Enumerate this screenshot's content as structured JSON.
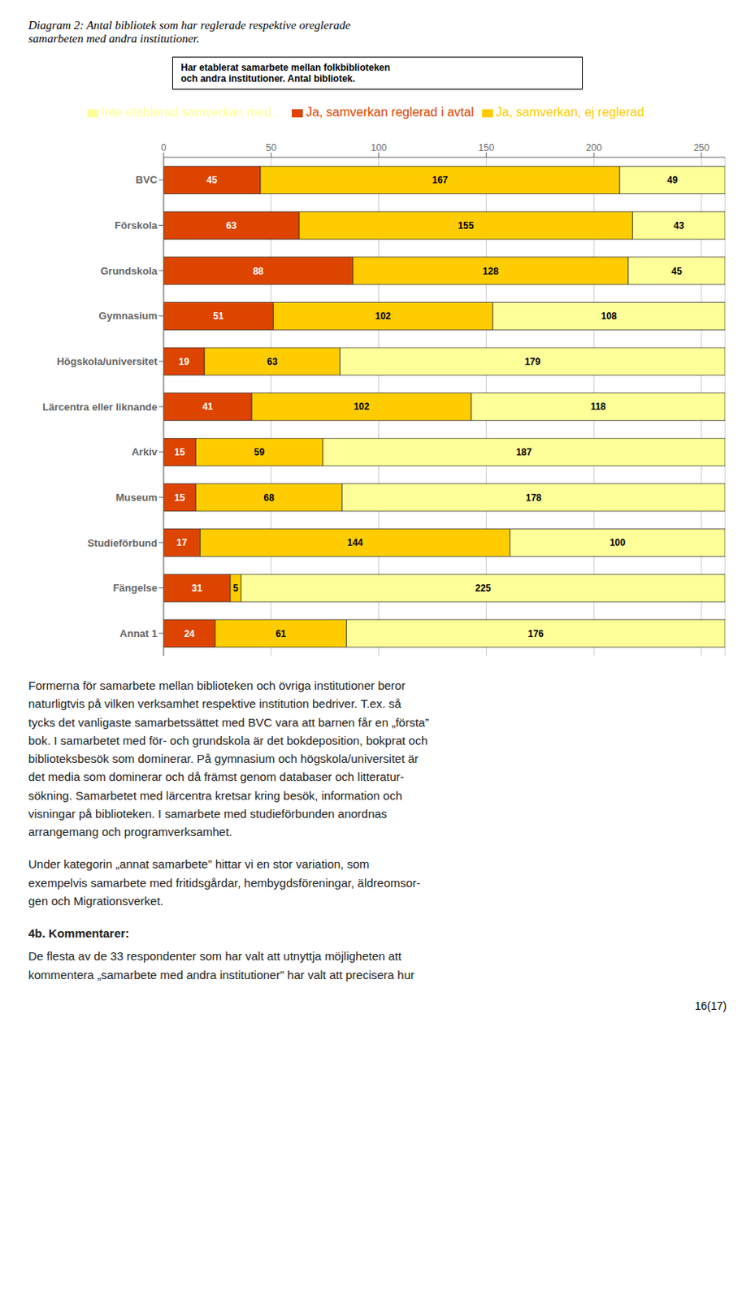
{
  "chart_data": {
    "type": "bar",
    "title": "Diagram 2: Antal bibliotek som har reglerade respektive oreglerade\nsamarbeten med andra institutioner.",
    "orientation": "horizontal",
    "stacked": true,
    "categories": [
      "BVC",
      "Förskola",
      "Grundskola",
      "Gymnasium",
      "Högskola/universitet",
      "Lärcentra eller liknande",
      "Arkiv",
      "Museum",
      "Studieförbund",
      "Fängelse",
      "Annat 1"
    ],
    "series": [
      {
        "name": "Ja, samverkan reglerad i avtal",
        "color": "#dd4400",
        "values": [
          45,
          63,
          88,
          51,
          19,
          41,
          15,
          15,
          17,
          31,
          24
        ]
      },
      {
        "name": "Ja, samverkan, ej reglerad",
        "color": "#ffcc00",
        "values": [
          167,
          155,
          128,
          102,
          63,
          102,
          59,
          68,
          144,
          5,
          61
        ]
      },
      {
        "name": "Inte etablerad samverkan med…",
        "color": "#ffff99",
        "values": [
          49,
          43,
          45,
          108,
          179,
          118,
          187,
          178,
          100,
          225,
          176
        ]
      }
    ],
    "xlim": [
      0,
      261
    ],
    "xticks": [
      0,
      50,
      100,
      150,
      200,
      250
    ],
    "grid": true,
    "data_labels": true,
    "legend": "top",
    "annotations": [
      "Har etablerat samarbete mellan folkbiblioteken",
      "och andra institutioner. Antal bibliotek.",
      "Formerna för samarbete mellan biblioteken och övriga institutioner beror\nnaturligtvis på vilken verksamhet respektive institution bedriver. T.ex. så\ntycks det vanligaste samarbetssättet med BVC vara att barnen får en „första”\nbok. I samarbetet med för- och grundskola är det bokdeposition, bokprat och\nbiblioteksbesök som dominerar. På gymnasium och högskola/universitet är\ndet media som dominerar och då främst genom databaser och litteratur-\nsökning. Samarbetet med lärcentra kretsar kring besök, information och\nvisningar på biblioteken. I samarbete med studieförbunden anordnas\narrangemang och programverksamhet.",
      "Under kategorin „annat samarbete” hittar vi en stor variation, som\nexempelvis samarbete med fritidsgårdar, hembygdsföreningar, äldreomsor-\ngen och Migrationsverket.",
      "4b. Kommentarer:",
      "De flesta av de 33 respondenter som har valt att utnyttja möjligheten att\nkommentera „samarbete med andra institutioner” har valt att precisera hur",
      "16(17)"
    ]
  }
}
